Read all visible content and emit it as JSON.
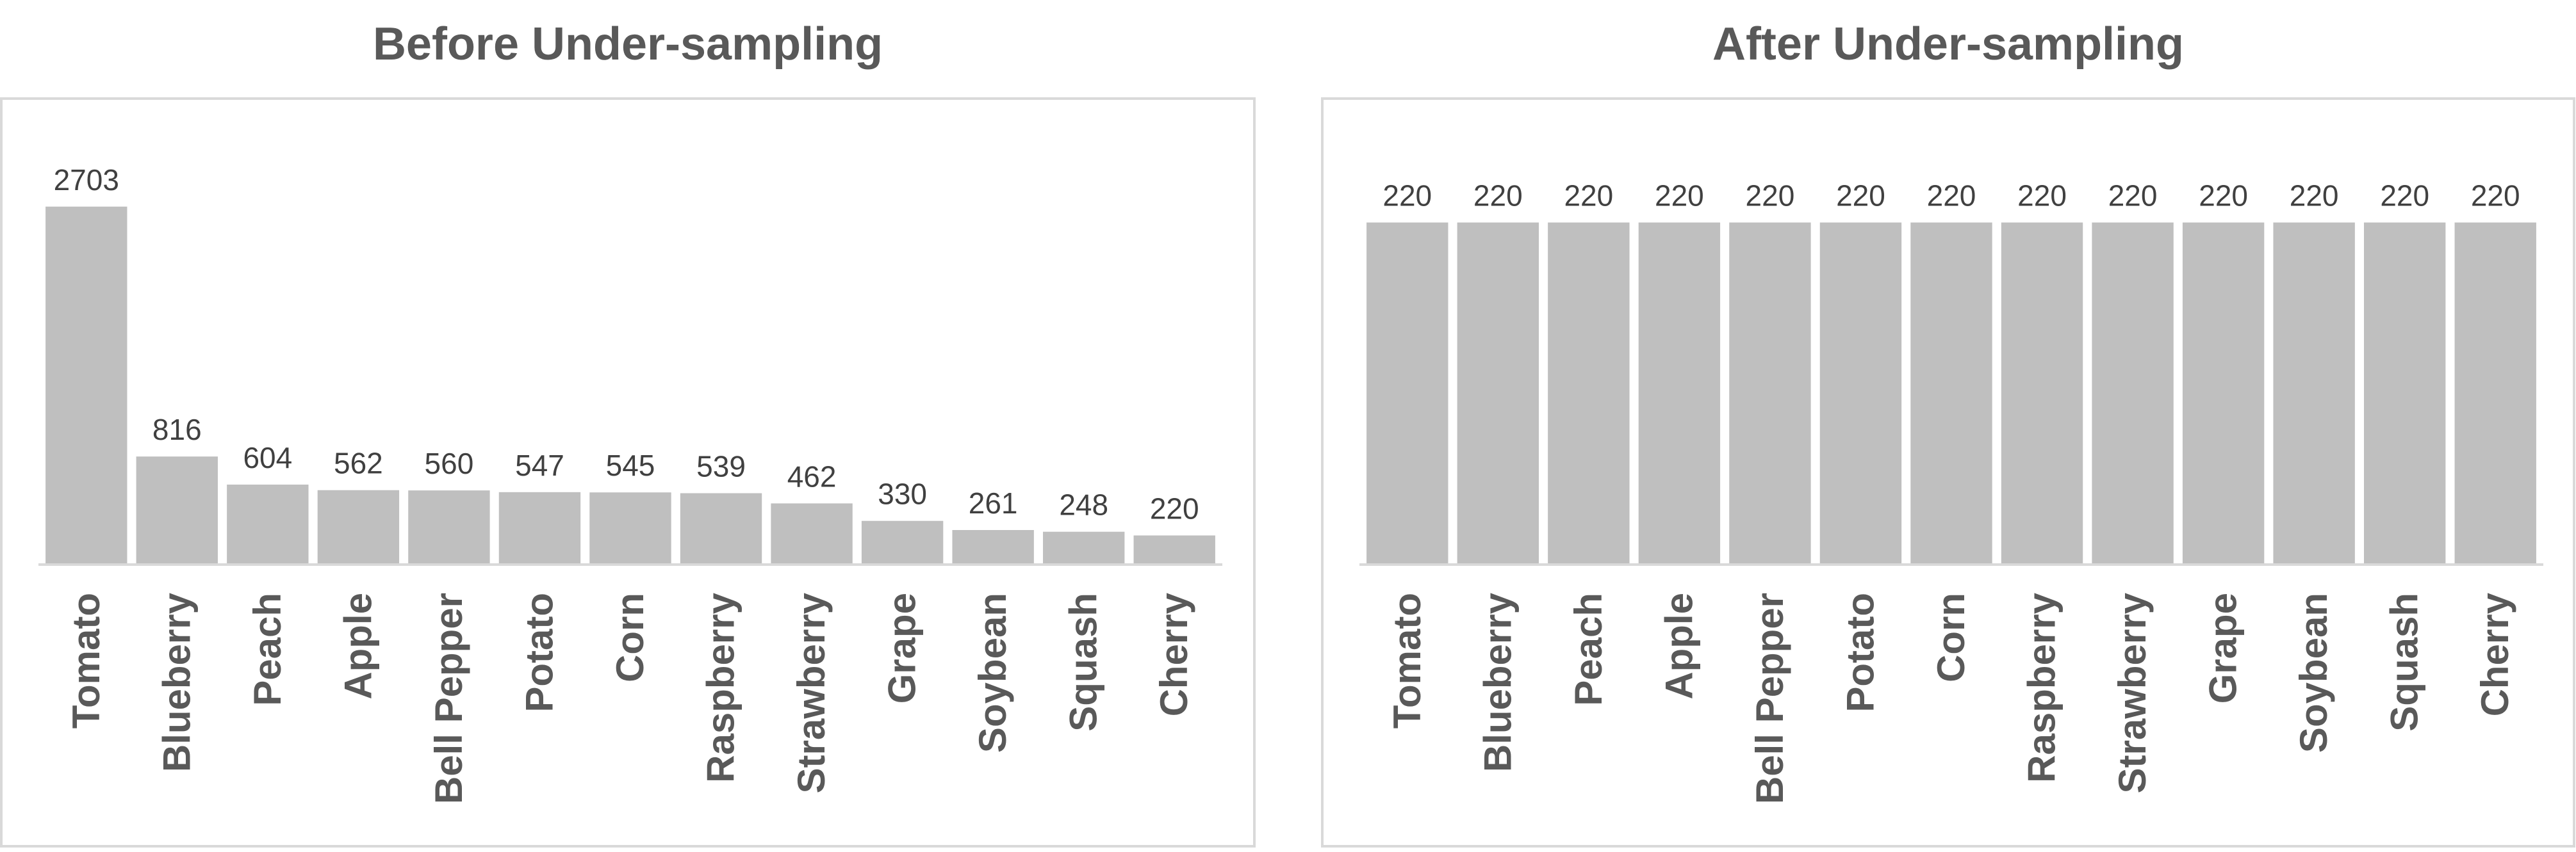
{
  "chart_data": [
    {
      "type": "bar",
      "title": "Before Under-sampling",
      "categories": [
        "Tomato",
        "Blueberry",
        "Peach",
        "Apple",
        "Bell Pepper",
        "Potato",
        "Corn",
        "Raspberry",
        "Strawberry",
        "Grape",
        "Soybean",
        "Squash",
        "Cherry"
      ],
      "values": [
        2703,
        816,
        604,
        562,
        560,
        547,
        545,
        539,
        462,
        330,
        261,
        248,
        220
      ],
      "xlabel": "",
      "ylabel": "",
      "ylim": [
        0,
        2900
      ],
      "grid": false,
      "legend": "none",
      "bar_color": "#bfbfbf"
    },
    {
      "type": "bar",
      "title": "After Under-sampling",
      "categories": [
        "Tomato",
        "Blueberry",
        "Peach",
        "Apple",
        "Bell Pepper",
        "Potato",
        "Corn",
        "Raspberry",
        "Strawberry",
        "Grape",
        "Soybean",
        "Squash",
        "Cherry"
      ],
      "values": [
        220,
        220,
        220,
        220,
        220,
        220,
        220,
        220,
        220,
        220,
        220,
        220,
        220
      ],
      "xlabel": "",
      "ylabel": "",
      "ylim": [
        0,
        240
      ],
      "grid": false,
      "legend": "none",
      "bar_color": "#bfbfbf"
    }
  ]
}
